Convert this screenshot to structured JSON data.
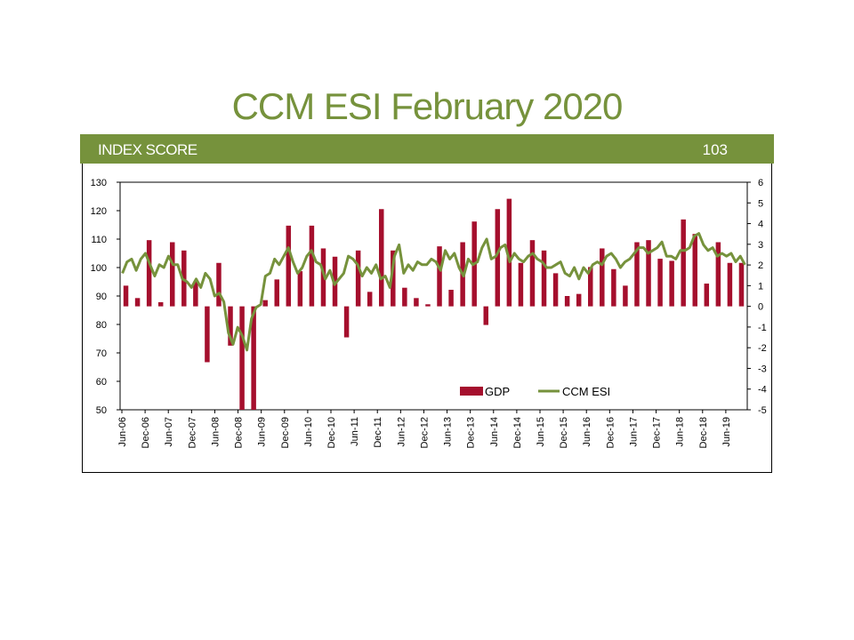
{
  "title": "CCM ESI February 2020",
  "band": {
    "label": "INDEX SCORE",
    "score": "103",
    "color": "#76923c"
  },
  "chart_data": {
    "type": "bar",
    "left_axis": {
      "min": 50,
      "max": 130,
      "ticks": [
        50,
        60,
        70,
        80,
        90,
        100,
        110,
        120,
        130
      ]
    },
    "right_axis": {
      "min": -5,
      "max": 6,
      "ticks": [
        -5,
        -4,
        -3,
        -2,
        -1,
        0,
        1,
        2,
        3,
        4,
        5,
        6
      ]
    },
    "x_tick_labels": [
      "Jun-06",
      "Dec-06",
      "Jun-07",
      "Dec-07",
      "Jun-08",
      "Dec-08",
      "Jun-09",
      "Dec-09",
      "Jun-10",
      "Dec-10",
      "Jun-11",
      "Dec-11",
      "Jun-12",
      "Dec-12",
      "Jun-13",
      "Dec-13",
      "Jun-14",
      "Dec-14",
      "Jun-15",
      "Dec-15",
      "Jun-16",
      "Dec-16",
      "Jun-17",
      "Dec-17",
      "Jun-18",
      "Dec-18",
      "Jun-19"
    ],
    "legend": {
      "placement": "bottom-center",
      "entries": [
        "GDP",
        "CCM ESI"
      ]
    },
    "grid": false,
    "series": [
      {
        "name": "GDP",
        "type": "bar",
        "axis": "right",
        "color": "#a50f2d",
        "values": [
          1.0,
          0.4,
          3.2,
          0.2,
          3.1,
          2.7,
          1.2,
          -2.7,
          2.1,
          -1.9,
          -5.0,
          -5.0,
          0.3,
          1.3,
          3.9,
          1.7,
          3.9,
          2.8,
          2.4,
          -1.5,
          2.7,
          0.7,
          4.7,
          2.7,
          0.9,
          0.4,
          0.1,
          2.9,
          0.8,
          3.1,
          4.1,
          -0.9,
          4.7,
          5.2,
          2.1,
          3.2,
          2.7,
          1.6,
          0.5,
          0.6,
          1.9,
          2.8,
          1.8,
          1.0,
          3.1,
          3.2,
          2.3,
          2.2,
          4.2,
          3.5,
          1.1,
          3.1,
          2.1,
          2.1
        ]
      },
      {
        "name": "CCM ESI",
        "type": "line",
        "axis": "left",
        "color": "#76923c",
        "values": [
          98,
          102,
          103,
          99,
          103,
          105,
          101,
          97,
          101,
          100,
          104,
          101,
          101,
          96,
          95,
          93,
          96,
          93,
          98,
          96,
          90,
          91,
          88,
          77,
          73,
          79,
          76,
          71,
          82,
          86,
          87,
          97,
          98,
          103,
          101,
          104,
          107,
          102,
          98,
          100,
          104,
          106,
          102,
          101,
          96,
          99,
          94,
          96,
          98,
          104,
          103,
          101,
          97,
          100,
          98,
          101,
          96,
          97,
          93,
          104,
          108,
          98,
          101,
          99,
          102,
          101,
          101,
          103,
          102,
          99,
          106,
          103,
          105,
          100,
          97,
          103,
          101,
          102,
          107,
          110,
          103,
          104,
          107,
          108,
          102,
          105,
          103,
          102,
          104,
          105,
          103,
          102,
          100,
          100,
          101,
          102,
          98,
          97,
          100,
          96,
          100,
          98,
          101,
          102,
          101,
          104,
          105,
          103,
          100,
          102,
          103,
          105,
          107,
          107,
          105,
          106,
          107,
          109,
          104,
          104,
          103,
          106,
          106,
          107,
          111,
          112,
          108,
          106,
          107,
          104,
          105,
          104,
          105,
          102,
          104,
          101
        ]
      }
    ]
  }
}
